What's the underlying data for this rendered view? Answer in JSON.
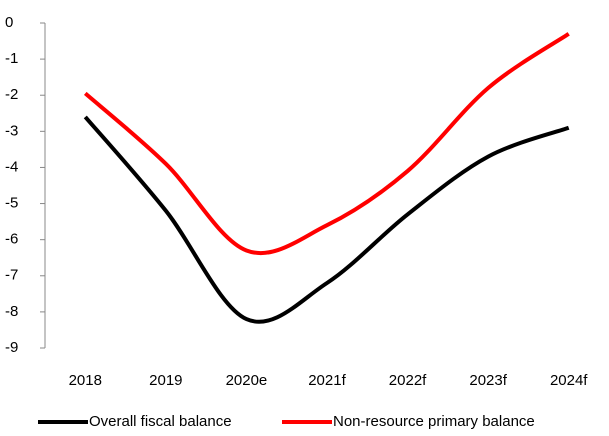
{
  "chart_data": {
    "type": "line",
    "categories": [
      "2018",
      "2019",
      "2020e",
      "2021f",
      "2022f",
      "2023f",
      "2024f"
    ],
    "series": [
      {
        "name": "Overall fiscal balance",
        "color": "#000000",
        "values": [
          -2.6,
          -5.2,
          -8.2,
          -7.2,
          -5.3,
          -3.7,
          -2.9
        ]
      },
      {
        "name": "Non-resource primary balance",
        "color": "#ff0000",
        "values": [
          -1.95,
          -3.9,
          -6.3,
          -5.6,
          -4.1,
          -1.8,
          -0.3
        ]
      }
    ],
    "ylim": [
      -9,
      0
    ],
    "yticks": [
      0,
      -1,
      -2,
      -3,
      -4,
      -5,
      -6,
      -7,
      -8,
      -9
    ],
    "legend": "bottom"
  }
}
